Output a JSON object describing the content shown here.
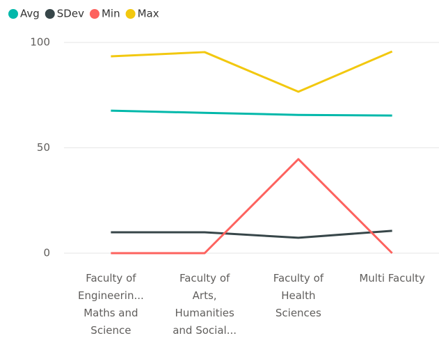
{
  "chart_data": {
    "type": "line",
    "categories": [
      "Faculty of Engineerin... Maths and Science",
      "Faculty of Arts, Humanities and Social...",
      "Faculty of Health Sciences",
      "Multi Faculty"
    ],
    "series": [
      {
        "name": "Avg",
        "color": "#01b8aa",
        "values": [
          67.6,
          66.6,
          65.6,
          65.3
        ]
      },
      {
        "name": "SDev",
        "color": "#374649",
        "values": [
          9.9,
          9.9,
          7.3,
          10.6
        ]
      },
      {
        "name": "Min",
        "color": "#fd625e",
        "values": [
          0,
          0,
          44.6,
          0
        ]
      },
      {
        "name": "Max",
        "color": "#f2c80f",
        "values": [
          93.4,
          95.4,
          76.6,
          95.7
        ]
      }
    ],
    "ylim": [
      0,
      100
    ],
    "yticks": [
      0,
      50,
      100
    ],
    "grid": true
  }
}
